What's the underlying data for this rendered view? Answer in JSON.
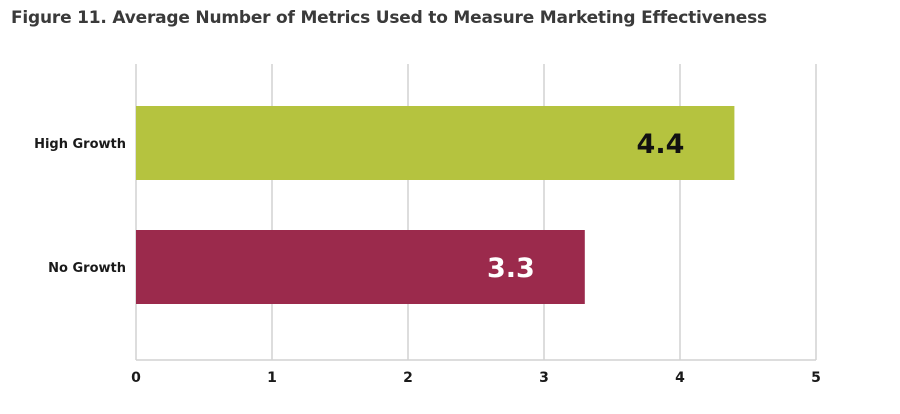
{
  "chart_data": {
    "type": "bar",
    "orientation": "horizontal",
    "title": "Figure 11. Average Number of Metrics Used to Measure Marketing Effectiveness",
    "xlabel": "",
    "ylabel": "",
    "categories": [
      "High Growth",
      "No Growth"
    ],
    "values": [
      4.4,
      3.3
    ],
    "value_labels": [
      "4.4",
      "3.3"
    ],
    "bar_colors": [
      "#b5c33f",
      "#9b2a4c"
    ],
    "label_colors": [
      "#111111",
      "#ffffff"
    ],
    "xlim": [
      0,
      5
    ],
    "xticks": [
      0,
      1,
      2,
      3,
      4,
      5
    ],
    "xtick_labels": [
      "0",
      "1",
      "2",
      "3",
      "4",
      "5"
    ],
    "grid": true,
    "legend": "none"
  }
}
